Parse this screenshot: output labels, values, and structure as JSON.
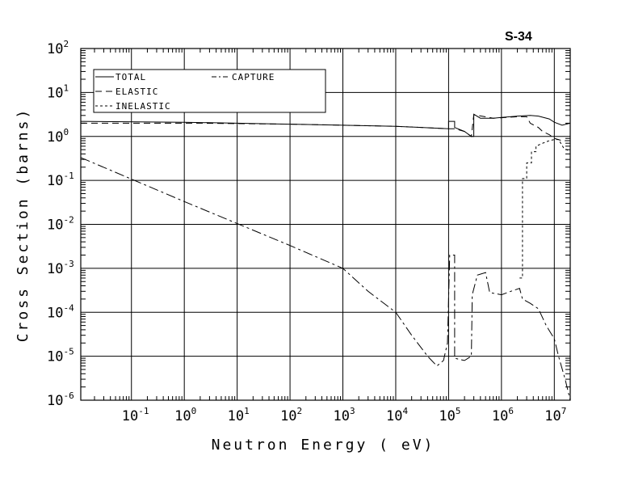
{
  "chart_data": {
    "type": "line",
    "title": "S-34",
    "xlabel": "Neutron Energy ( eV)",
    "ylabel": "Cross Section (barns)",
    "xscale": "log",
    "yscale": "log",
    "xlim": [
      0.011,
      20000000
    ],
    "ylim": [
      1e-06,
      100
    ],
    "grid": true,
    "legend_position": "top-left",
    "x_ticks": [
      {
        "base": "10",
        "exp": "-1",
        "v": 0.1
      },
      {
        "base": "10",
        "exp": "0",
        "v": 1
      },
      {
        "base": "10",
        "exp": "1",
        "v": 10
      },
      {
        "base": "10",
        "exp": "2",
        "v": 100
      },
      {
        "base": "10",
        "exp": "3",
        "v": 1000
      },
      {
        "base": "10",
        "exp": "4",
        "v": 10000
      },
      {
        "base": "10",
        "exp": "5",
        "v": 100000
      },
      {
        "base": "10",
        "exp": "6",
        "v": 1000000
      },
      {
        "base": "10",
        "exp": "7",
        "v": 10000000
      }
    ],
    "y_ticks": [
      {
        "base": "10",
        "exp": "2",
        "v": 100
      },
      {
        "base": "10",
        "exp": "1",
        "v": 10
      },
      {
        "base": "10",
        "exp": "0",
        "v": 1
      },
      {
        "base": "10",
        "exp": "-1",
        "v": 0.1
      },
      {
        "base": "10",
        "exp": "-2",
        "v": 0.01
      },
      {
        "base": "10",
        "exp": "-3",
        "v": 0.001
      },
      {
        "base": "10",
        "exp": "-4",
        "v": 0.0001
      },
      {
        "base": "10",
        "exp": "-5",
        "v": 1e-05
      },
      {
        "base": "10",
        "exp": "-6",
        "v": 1e-06
      }
    ],
    "series": [
      {
        "name": "TOTAL",
        "dash": "",
        "points": [
          [
            0.011,
            2.2
          ],
          [
            1,
            2.1
          ],
          [
            100,
            1.9
          ],
          [
            1000,
            1.8
          ],
          [
            10000,
            1.7
          ],
          [
            100000,
            1.5
          ],
          [
            100000,
            2.2
          ],
          [
            130000,
            2.2
          ],
          [
            130000,
            1.6
          ],
          [
            200000,
            1.3
          ],
          [
            270000,
            1.0
          ],
          [
            300000,
            1.0
          ],
          [
            300000,
            3.2
          ],
          [
            400000,
            2.6
          ],
          [
            700000,
            2.6
          ],
          [
            1000000,
            2.7
          ],
          [
            2000000,
            2.9
          ],
          [
            3500000,
            3.0
          ],
          [
            5000000,
            2.9
          ],
          [
            8000000,
            2.5
          ],
          [
            10000000,
            2.1
          ],
          [
            14000000,
            1.8
          ],
          [
            20000000,
            2.0
          ]
        ]
      },
      {
        "name": "ELASTIC",
        "dash": "8,5",
        "points": [
          [
            0.011,
            2.0
          ],
          [
            2,
            2.0
          ],
          [
            100,
            1.9
          ],
          [
            1000,
            1.8
          ],
          [
            10000,
            1.7
          ],
          [
            100000,
            1.5
          ],
          [
            130000,
            1.5
          ],
          [
            200000,
            1.3
          ],
          [
            270000,
            1.0
          ],
          [
            300000,
            3.1
          ],
          [
            700000,
            2.6
          ],
          [
            2000000,
            2.8
          ],
          [
            3000000,
            2.8
          ],
          [
            3500000,
            2.0
          ],
          [
            5000000,
            1.6
          ],
          [
            6000000,
            1.3
          ],
          [
            8000000,
            1.1
          ],
          [
            10000000,
            0.9
          ],
          [
            14000000,
            0.8
          ],
          [
            20000000,
            0.8
          ]
        ]
      },
      {
        "name": "INELASTIC",
        "dash": "3,3",
        "points": [
          [
            2200000,
            0.0006
          ],
          [
            2500000,
            0.0006
          ],
          [
            2500000,
            0.11
          ],
          [
            3000000,
            0.11
          ],
          [
            3000000,
            0.25
          ],
          [
            3700000,
            0.25
          ],
          [
            3700000,
            0.45
          ],
          [
            4500000,
            0.45
          ],
          [
            4500000,
            0.6
          ],
          [
            6000000,
            0.7
          ],
          [
            8000000,
            0.8
          ],
          [
            10000000,
            0.85
          ],
          [
            12000000,
            0.85
          ],
          [
            15000000,
            0.55
          ],
          [
            20000000,
            0.45
          ]
        ]
      },
      {
        "name": "CAPTURE",
        "dash": "12,4,3,4",
        "points": [
          [
            0.011,
            0.33
          ],
          [
            1,
            0.033
          ],
          [
            100,
            0.0033
          ],
          [
            1000,
            0.001
          ],
          [
            3000,
            0.0003
          ],
          [
            10000,
            0.0001
          ],
          [
            20000,
            3e-05
          ],
          [
            40000,
            1e-05
          ],
          [
            60000,
            6e-06
          ],
          [
            80000,
            8e-06
          ],
          [
            95000,
            2e-05
          ],
          [
            105000,
            0.002
          ],
          [
            130000,
            0.002
          ],
          [
            130000,
            9e-06
          ],
          [
            200000,
            8e-06
          ],
          [
            270000,
            1e-05
          ],
          [
            280000,
            0.00025
          ],
          [
            350000,
            0.0007
          ],
          [
            500000,
            0.0008
          ],
          [
            600000,
            0.00028
          ],
          [
            1000000,
            0.00025
          ],
          [
            1500000,
            0.0003
          ],
          [
            2200000,
            0.00035
          ],
          [
            2500000,
            0.0002
          ],
          [
            3500000,
            0.00016
          ],
          [
            5000000,
            0.00012
          ],
          [
            7000000,
            5e-05
          ],
          [
            10000000,
            2.5e-05
          ],
          [
            12000000,
            1e-05
          ],
          [
            16000000,
            3e-06
          ],
          [
            20000000,
            1e-06
          ]
        ]
      }
    ]
  }
}
